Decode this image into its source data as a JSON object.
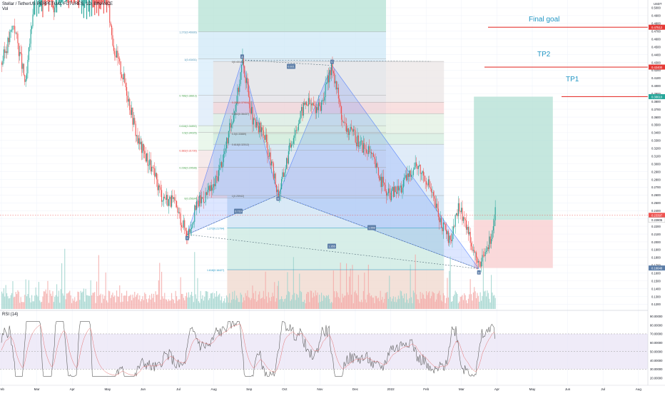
{
  "header": {
    "symbol_line": "Stellar / TetherUS PERPETUAL FUTURES, 1D, BINANCE",
    "vol_label": "Vol"
  },
  "rsi": {
    "label": "RSI (14)",
    "levels": [
      70,
      50,
      30
    ]
  },
  "colors": {
    "bull": "#26a69a",
    "bear": "#ef5350",
    "grid": "#f0f3fa",
    "target_line": "#e53935",
    "label_blue": "#2196c4",
    "pattern_fill": "#2962ff",
    "rsi_line": "#7e57c2"
  },
  "price_axis": {
    "ticks": [
      "0.5000",
      "0.4900",
      "0.4800",
      "0.4700",
      "0.4600",
      "0.4500",
      "0.4400",
      "0.4300",
      "0.4200",
      "0.4100",
      "0.4000",
      "0.3900",
      "0.3800",
      "0.3700",
      "0.3600",
      "0.3500",
      "0.3400",
      "0.3300",
      "0.3200",
      "0.3100",
      "0.3000",
      "0.2900",
      "0.2800",
      "0.2700",
      "0.2600",
      "0.2500",
      "0.2400",
      "0.2300",
      "0.2200",
      "0.2100",
      "0.2000",
      "0.1900",
      "0.1800",
      "0.1700",
      "0.1600",
      "0.1500",
      "0.1400",
      "0.1300",
      "0.1200"
    ],
    "top_label": "USDT",
    "badges": [
      {
        "text": "0.47512",
        "value": 0.4751,
        "color": "#e53935"
      },
      {
        "text": "0.42400",
        "value": 0.424,
        "color": "#e53935"
      },
      {
        "text": "0.38610",
        "value": 0.3861,
        "color": "#26a69a"
      },
      {
        "text": "0.23397",
        "value": 0.234,
        "color": "#ef5350"
      },
      {
        "text": "0.22805",
        "value": 0.2281,
        "color": "#ffffff"
      },
      {
        "text": "0.16648",
        "value": 0.1665,
        "color": "#5d7ea8"
      }
    ]
  },
  "rsi_axis": {
    "ticks": [
      "90.00000",
      "80.00000",
      "70.00000",
      "60.00000",
      "50.00000",
      "40.00000",
      "30.00000",
      "20.00000"
    ]
  },
  "time_axis": {
    "labels": [
      "Feb",
      "Mar",
      "Apr",
      "May",
      "Jun",
      "Jul",
      "Aug",
      "Sep",
      "Oct",
      "Nov",
      "Dec",
      "2022",
      "Feb",
      "Mar",
      "Apr",
      "May",
      "Jun",
      "Jul",
      "Aug"
    ]
  },
  "targets": [
    {
      "label": "Final goal",
      "price": 0.4751
    },
    {
      "label": "TP2",
      "price": 0.424
    },
    {
      "label": "TP1",
      "price": 0.3861
    }
  ],
  "fib_left": {
    "levels": [
      {
        "label": "1.272(0.46930)",
        "price": 0.4693
      },
      {
        "label": "1(0.43431)",
        "price": 0.4343
      },
      {
        "label": "0.786(0.38813)",
        "price": 0.3881
      },
      {
        "label": "0.618(0.34892)",
        "price": 0.3489
      },
      {
        "label": "0.5(0.34025)",
        "price": 0.3402
      },
      {
        "label": "0.382(0.31730)",
        "price": 0.3173
      },
      {
        "label": "0.236(0.29538)",
        "price": 0.2954
      },
      {
        "label": "0(0.25634)",
        "price": 0.2563
      }
    ]
  },
  "fib_mid": {
    "levels": [
      {
        "label": "0(0.43128)",
        "price": 0.4313
      },
      {
        "label": "0.236(0.37904)",
        "price": 0.379
      },
      {
        "label": "0.382(0.36437)",
        "price": 0.3644
      },
      {
        "label": "0.5(0.33889)",
        "price": 0.3389
      },
      {
        "label": "0.618(0.32512)",
        "price": 0.3251
      },
      {
        "label": "1(0.25942)",
        "price": 0.2594
      }
    ]
  },
  "fib_ext": {
    "levels": [
      {
        "label": "1.272(0.21794)",
        "price": 0.2179
      },
      {
        "label": "1.618(0.16427)",
        "price": 0.1643
      }
    ]
  },
  "harmonic_labels": [
    "X",
    "A",
    "B",
    "C",
    "D",
    "0.719",
    "0.921",
    "1.559",
    "1.355"
  ],
  "pattern_points": [
    {
      "name": "X",
      "date_index": 186,
      "price": 0.2095
    },
    {
      "name": "A",
      "date_index": 241,
      "price": 0.433
    },
    {
      "name": "B",
      "date_index": 277,
      "price": 0.26
    },
    {
      "name": "C",
      "date_index": 331,
      "price": 0.4262
    },
    {
      "name": "D",
      "date_index": 478,
      "price": 0.1654
    }
  ],
  "position": {
    "entry": 0.2281,
    "stop": 0.1665,
    "target": 0.3861
  }
}
